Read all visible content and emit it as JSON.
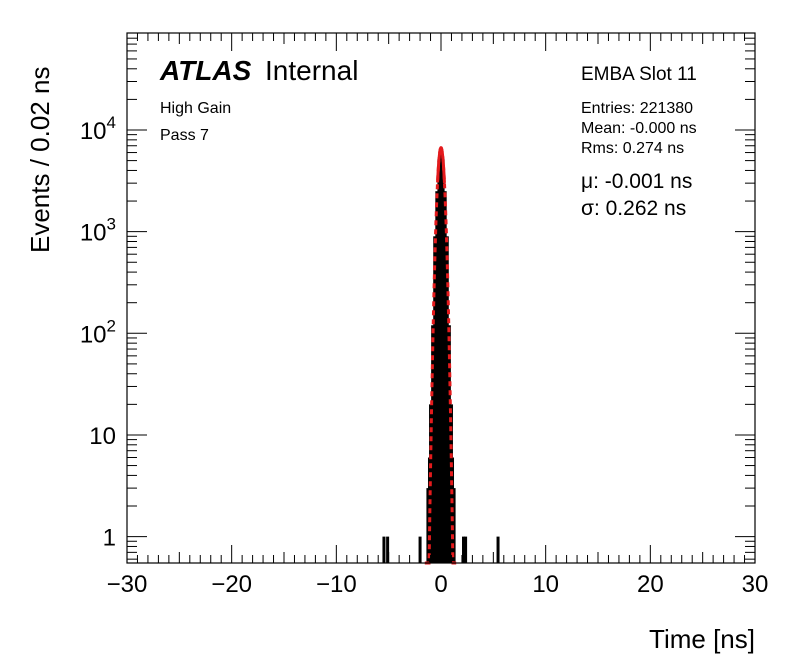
{
  "chart_data": {
    "type": "histogram",
    "title": "",
    "xlabel": "Time [ns]",
    "ylabel": "Events / 0.02 ns",
    "xlim": [
      -30,
      30
    ],
    "ylim": [
      0.55,
      90000
    ],
    "yscale": "log",
    "bin_width": 0.02,
    "x_ticks": [
      {
        "value": -30,
        "label": "−30"
      },
      {
        "value": -20,
        "label": "−20"
      },
      {
        "value": -10,
        "label": "−10"
      },
      {
        "value": 0,
        "label": "0"
      },
      {
        "value": 10,
        "label": "10"
      },
      {
        "value": 20,
        "label": "20"
      },
      {
        "value": 30,
        "label": "30"
      }
    ],
    "y_ticks": [
      {
        "value": 1,
        "base": "1",
        "exp": ""
      },
      {
        "value": 10,
        "base": "10",
        "exp": ""
      },
      {
        "value": 100,
        "base": "10",
        "exp": "2"
      },
      {
        "value": 1000,
        "base": "10",
        "exp": "3"
      },
      {
        "value": 10000,
        "base": "10",
        "exp": "4"
      }
    ],
    "series": [
      {
        "kind": "histogram",
        "color": "#000000",
        "x": [
          -5.45,
          -5.1,
          -2.0,
          -1.25,
          -1.1,
          -1.0,
          -0.8,
          -0.6,
          -0.4,
          -0.2,
          0.0,
          0.2,
          0.4,
          0.6,
          0.8,
          1.0,
          1.1,
          1.25,
          2.15,
          2.35,
          5.45
        ],
        "values": [
          1,
          1,
          1,
          3,
          6,
          20,
          120,
          900,
          2500,
          5200,
          6700,
          5200,
          2500,
          900,
          120,
          20,
          6,
          3,
          1,
          1,
          1
        ]
      },
      {
        "kind": "gaussian-fit",
        "color": "#e41a1c",
        "amplitude": 6700,
        "mu": -0.001,
        "sigma": 0.262,
        "solid_range": [
          -0.33,
          0.33
        ],
        "dashed_range": [
          -1.55,
          1.55
        ]
      }
    ],
    "annotations": {
      "atlas": "ATLAS",
      "internal": "Internal",
      "gain": "High Gain",
      "pass": "Pass 7",
      "module": "EMBA Slot 11",
      "entries": "Entries: 221380",
      "mean": "Mean: -0.000 ns",
      "rms": "Rms: 0.274 ns",
      "mu": "μ: -0.001 ns",
      "sigma": "σ: 0.262 ns"
    }
  }
}
